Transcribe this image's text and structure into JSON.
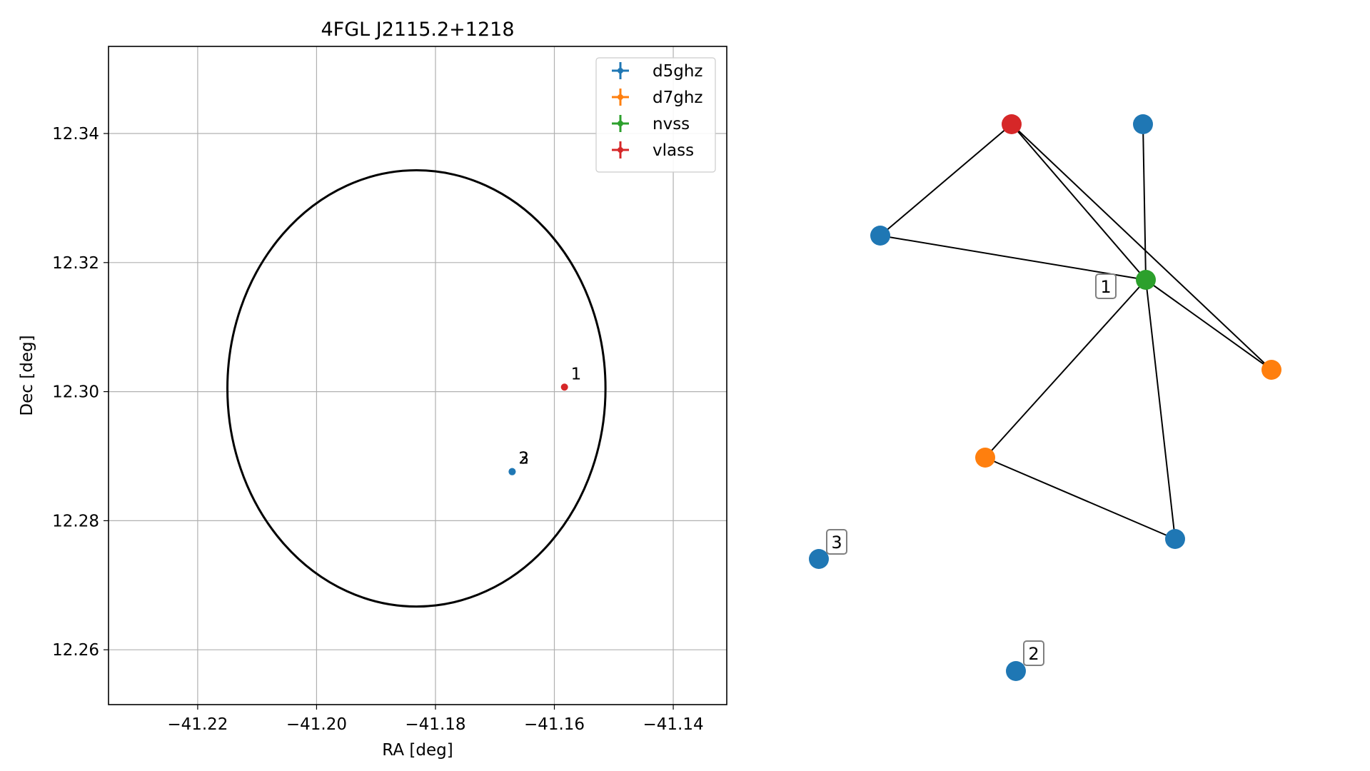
{
  "figure": {
    "title": "4FGL J2115.2+1218",
    "xlabel": "RA [deg]",
    "ylabel": "Dec [deg]"
  },
  "legend": {
    "placement": "top-right",
    "entries": [
      {
        "label": "d5ghz",
        "color": "#1f77b4"
      },
      {
        "label": "d7ghz",
        "color": "#ff7f0e"
      },
      {
        "label": "nvss",
        "color": "#2ca02c"
      },
      {
        "label": "vlass",
        "color": "#d62728"
      }
    ]
  },
  "chart_data": [
    {
      "type": "scatter",
      "title": "4FGL J2115.2+1218",
      "xlabel": "RA [deg]",
      "ylabel": "Dec [deg]",
      "xlim": [
        -41.235,
        -41.131
      ],
      "ylim": [
        12.2515,
        12.3535
      ],
      "xticks": [
        -41.22,
        -41.2,
        -41.18,
        -41.16,
        -41.14
      ],
      "xtick_labels": [
        "−41.22",
        "−41.20",
        "−41.18",
        "−41.16",
        "−41.14"
      ],
      "yticks": [
        12.26,
        12.28,
        12.3,
        12.32,
        12.34
      ],
      "ytick_labels": [
        "12.26",
        "12.28",
        "12.30",
        "12.32",
        "12.34"
      ],
      "grid": true,
      "ellipse": {
        "center": [
          -41.1832,
          12.3005
        ],
        "semi_axis_ra": 0.0318,
        "semi_axis_dec": 0.0338,
        "color": "#000000"
      },
      "points": [
        {
          "series": "vlass",
          "x": -41.1583,
          "y": 12.3007,
          "label": "1",
          "color": "#d62728"
        },
        {
          "series": "d5ghz",
          "x": -41.1671,
          "y": 12.2876,
          "label": "3",
          "color": "#1f77b4"
        },
        {
          "series": "d5ghz",
          "x": -41.1671,
          "y": 12.2876,
          "label": "2",
          "color": "#1f77b4"
        }
      ]
    },
    {
      "type": "network",
      "nodes": [
        {
          "id": "vlass",
          "color": "#d62728"
        },
        {
          "id": "d5-top",
          "color": "#1f77b4"
        },
        {
          "id": "d5-left",
          "color": "#1f77b4"
        },
        {
          "id": "nvss",
          "color": "#2ca02c",
          "label": "1"
        },
        {
          "id": "d7-right",
          "color": "#ff7f0e"
        },
        {
          "id": "d7-mid",
          "color": "#ff7f0e"
        },
        {
          "id": "d5-bottomright",
          "color": "#1f77b4"
        },
        {
          "id": "d5-3",
          "color": "#1f77b4",
          "label": "3"
        },
        {
          "id": "d5-2",
          "color": "#1f77b4",
          "label": "2"
        }
      ],
      "edges": [
        [
          "vlass",
          "d5-left"
        ],
        [
          "vlass",
          "nvss"
        ],
        [
          "vlass",
          "d7-right"
        ],
        [
          "d5-top",
          "nvss"
        ],
        [
          "d5-left",
          "nvss"
        ],
        [
          "nvss",
          "d7-right"
        ],
        [
          "nvss",
          "d7-mid"
        ],
        [
          "nvss",
          "d5-bottomright"
        ],
        [
          "d7-mid",
          "d5-bottomright"
        ]
      ]
    }
  ]
}
